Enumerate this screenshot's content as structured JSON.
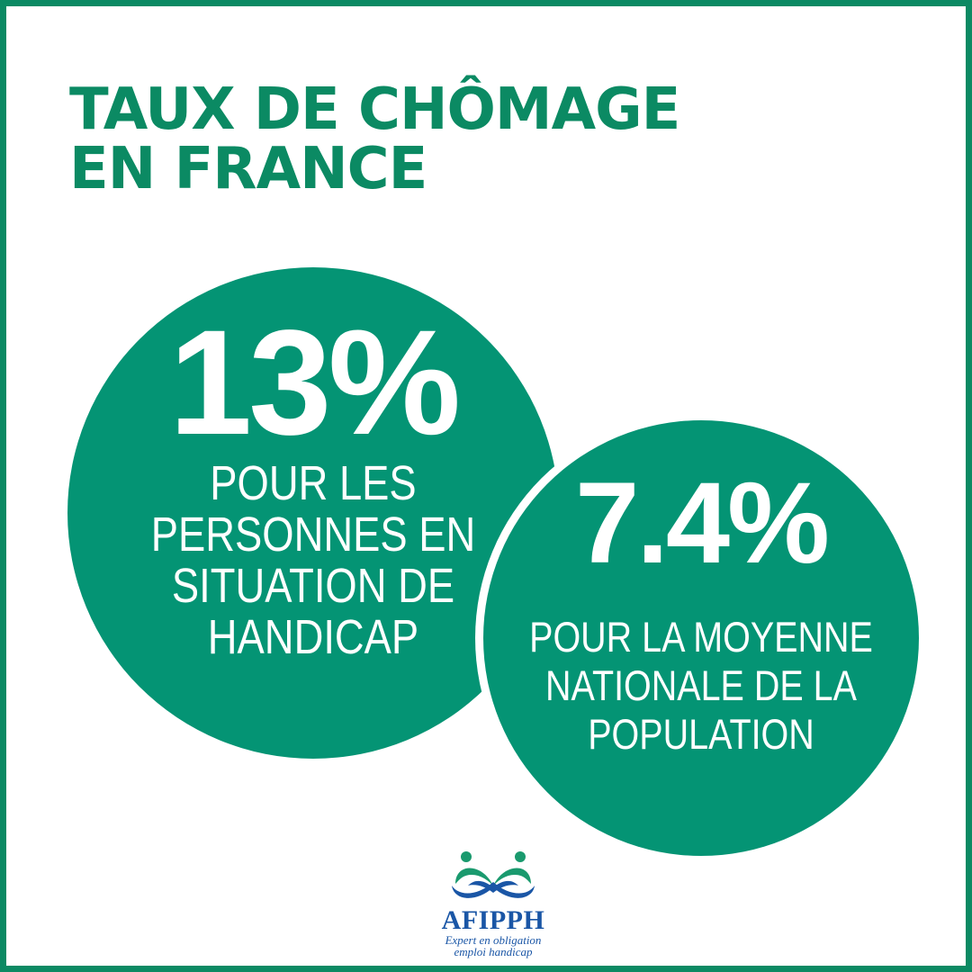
{
  "title": {
    "line1": "TAUX DE CHÔMAGE",
    "line2": "EN FRANCE"
  },
  "stats": [
    {
      "value": "13%",
      "label_lines": [
        "POUR LES",
        "PERSONNES EN",
        "SITUATION DE",
        "HANDICAP"
      ]
    },
    {
      "value": "7.4%",
      "label_lines": [
        "POUR LA MOYENNE",
        "NATIONALE DE LA",
        "POPULATION"
      ]
    }
  ],
  "logo": {
    "icon": "afipph-people-infinity-logo",
    "name": "AFIPPH",
    "tagline_line1": "Expert en obligation",
    "tagline_line2": "emploi handicap"
  },
  "colors": {
    "brand_green": "#0b8a63",
    "circle_green": "#049474",
    "logo_blue": "#1a56a6",
    "logo_green": "#1a9a6e"
  }
}
